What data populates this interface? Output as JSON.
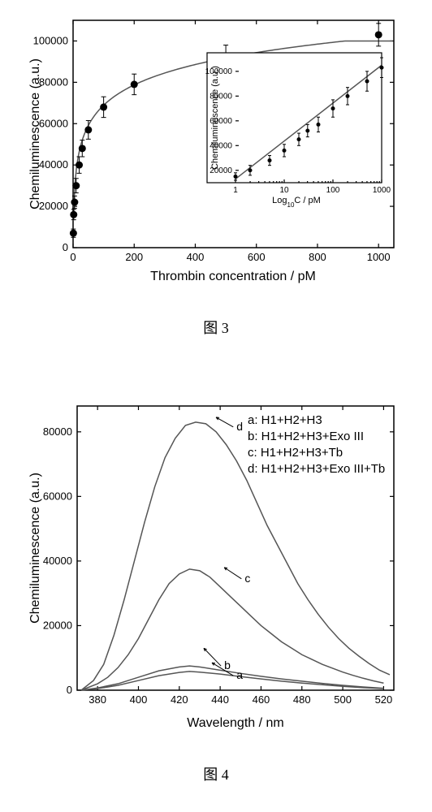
{
  "figure3": {
    "caption": "图 3",
    "main_chart": {
      "type": "scatter-with-fit",
      "xlabel": "Thrombin concentration / pM",
      "ylabel": "Chemiluminescence (a.u.)",
      "xlim": [
        0,
        1050
      ],
      "ylim": [
        0,
        110000
      ],
      "xticks": [
        0,
        200,
        400,
        600,
        800,
        1000
      ],
      "yticks": [
        0,
        20000,
        40000,
        60000,
        80000,
        100000
      ],
      "background_color": "#ffffff",
      "axis_color": "#000000",
      "label_fontsize": 16,
      "tick_fontsize": 13,
      "points": [
        {
          "x": 1,
          "y": 7000,
          "err": 2000
        },
        {
          "x": 2,
          "y": 16000,
          "err": 2500
        },
        {
          "x": 5,
          "y": 22000,
          "err": 3000
        },
        {
          "x": 10,
          "y": 30000,
          "err": 3500
        },
        {
          "x": 20,
          "y": 40000,
          "err": 4000
        },
        {
          "x": 30,
          "y": 48000,
          "err": 4000
        },
        {
          "x": 50,
          "y": 57000,
          "err": 4500
        },
        {
          "x": 100,
          "y": 68000,
          "err": 5000
        },
        {
          "x": 200,
          "y": 79000,
          "err": 5000
        },
        {
          "x": 500,
          "y": 92000,
          "err": 6000
        },
        {
          "x": 1000,
          "y": 103000,
          "err": 5500
        }
      ],
      "marker_color": "#000000",
      "marker_radius": 4.5,
      "fit_color": "#606060",
      "fit_width": 1.5
    },
    "inset_chart": {
      "type": "scatter-with-linear-fit",
      "xlabel": "Log₁₀C / pM",
      "ylabel": "Chemiluminescence (a.u.)",
      "xticks_log": [
        1,
        10,
        100,
        1000
      ],
      "yticks": [
        20000,
        40000,
        60000,
        80000,
        100000
      ],
      "ylim": [
        10000,
        115000
      ],
      "points": [
        {
          "logx": 0,
          "y": 15000,
          "err": 3000
        },
        {
          "logx": 0.3,
          "y": 20000,
          "err": 4000
        },
        {
          "logx": 0.7,
          "y": 28000,
          "err": 4000
        },
        {
          "logx": 1.0,
          "y": 36000,
          "err": 5000
        },
        {
          "logx": 1.3,
          "y": 45000,
          "err": 5000
        },
        {
          "logx": 1.48,
          "y": 52000,
          "err": 5000
        },
        {
          "logx": 1.7,
          "y": 57000,
          "err": 6000
        },
        {
          "logx": 2.0,
          "y": 70000,
          "err": 7000
        },
        {
          "logx": 2.3,
          "y": 80000,
          "err": 7000
        },
        {
          "logx": 2.7,
          "y": 92000,
          "err": 8000
        },
        {
          "logx": 3.0,
          "y": 103000,
          "err": 8000
        }
      ],
      "marker_color": "#000000",
      "marker_radius": 2.5,
      "fit_color": "#606060",
      "label_fontsize": 11,
      "tick_fontsize": 10
    }
  },
  "figure4": {
    "caption": "图 4",
    "chart": {
      "type": "line",
      "xlabel": "Wavelength / nm",
      "ylabel": "Chemiluminescence (a.u.)",
      "xlim": [
        370,
        525
      ],
      "ylim": [
        0,
        88000
      ],
      "xticks": [
        380,
        400,
        420,
        440,
        460,
        480,
        500,
        520
      ],
      "yticks": [
        0,
        20000,
        40000,
        60000,
        80000
      ],
      "background_color": "#ffffff",
      "axis_color": "#000000",
      "line_color": "#404040",
      "line_width": 1.5,
      "label_fontsize": 16,
      "tick_fontsize": 13,
      "legend_fontsize": 15,
      "legend": [
        {
          "key": "a",
          "text": "a: H1+H2+H3"
        },
        {
          "key": "b",
          "text": "b: H1+H2+H3+Exo III"
        },
        {
          "key": "c",
          "text": "c: H1+H2+H3+Tb"
        },
        {
          "key": "d",
          "text": "d: H1+H2+H3+Exo III+Tb"
        }
      ],
      "series_labels": [
        {
          "label": "a",
          "x": 448,
          "y": 5000,
          "ax": 436,
          "ay": 8500
        },
        {
          "label": "b",
          "x": 442,
          "y": 8000,
          "ax": 432,
          "ay": 13000
        },
        {
          "label": "c",
          "x": 452,
          "y": 35000,
          "ax": 442,
          "ay": 38000
        },
        {
          "label": "d",
          "x": 448,
          "y": 82000,
          "ax": 438,
          "ay": 84500
        }
      ],
      "series": {
        "a": [
          [
            372,
            0
          ],
          [
            380,
            500
          ],
          [
            390,
            1500
          ],
          [
            400,
            3000
          ],
          [
            410,
            4500
          ],
          [
            420,
            5500
          ],
          [
            425,
            5800
          ],
          [
            430,
            5600
          ],
          [
            440,
            5000
          ],
          [
            450,
            4200
          ],
          [
            460,
            3500
          ],
          [
            470,
            2800
          ],
          [
            480,
            2200
          ],
          [
            490,
            1700
          ],
          [
            500,
            1200
          ],
          [
            510,
            800
          ],
          [
            520,
            500
          ]
        ],
        "b": [
          [
            372,
            0
          ],
          [
            380,
            700
          ],
          [
            390,
            2000
          ],
          [
            400,
            4000
          ],
          [
            410,
            6000
          ],
          [
            420,
            7200
          ],
          [
            425,
            7500
          ],
          [
            430,
            7200
          ],
          [
            440,
            6200
          ],
          [
            450,
            5200
          ],
          [
            460,
            4300
          ],
          [
            470,
            3500
          ],
          [
            480,
            2800
          ],
          [
            490,
            2100
          ],
          [
            500,
            1500
          ],
          [
            510,
            1000
          ],
          [
            520,
            600
          ]
        ],
        "c": [
          [
            372,
            0
          ],
          [
            380,
            2000
          ],
          [
            385,
            4000
          ],
          [
            390,
            7000
          ],
          [
            395,
            11000
          ],
          [
            400,
            16000
          ],
          [
            405,
            22000
          ],
          [
            410,
            28000
          ],
          [
            415,
            33000
          ],
          [
            420,
            36000
          ],
          [
            425,
            37500
          ],
          [
            430,
            37000
          ],
          [
            435,
            35000
          ],
          [
            440,
            32000
          ],
          [
            445,
            29000
          ],
          [
            450,
            26000
          ],
          [
            455,
            23000
          ],
          [
            460,
            20000
          ],
          [
            465,
            17500
          ],
          [
            470,
            15000
          ],
          [
            475,
            13000
          ],
          [
            480,
            11000
          ],
          [
            485,
            9500
          ],
          [
            490,
            8000
          ],
          [
            495,
            6800
          ],
          [
            500,
            5600
          ],
          [
            505,
            4600
          ],
          [
            510,
            3700
          ],
          [
            515,
            2900
          ],
          [
            520,
            2200
          ]
        ],
        "d": [
          [
            372,
            0
          ],
          [
            378,
            3000
          ],
          [
            383,
            8000
          ],
          [
            388,
            17000
          ],
          [
            393,
            28000
          ],
          [
            398,
            40000
          ],
          [
            403,
            52000
          ],
          [
            408,
            63000
          ],
          [
            413,
            72000
          ],
          [
            418,
            78000
          ],
          [
            423,
            82000
          ],
          [
            428,
            83000
          ],
          [
            433,
            82500
          ],
          [
            438,
            80000
          ],
          [
            443,
            76000
          ],
          [
            448,
            71000
          ],
          [
            453,
            65000
          ],
          [
            458,
            58000
          ],
          [
            463,
            51000
          ],
          [
            468,
            45000
          ],
          [
            473,
            39000
          ],
          [
            478,
            33000
          ],
          [
            483,
            28000
          ],
          [
            488,
            23500
          ],
          [
            493,
            19500
          ],
          [
            498,
            16000
          ],
          [
            503,
            13000
          ],
          [
            508,
            10500
          ],
          [
            513,
            8200
          ],
          [
            518,
            6200
          ],
          [
            523,
            4800
          ]
        ]
      }
    }
  }
}
